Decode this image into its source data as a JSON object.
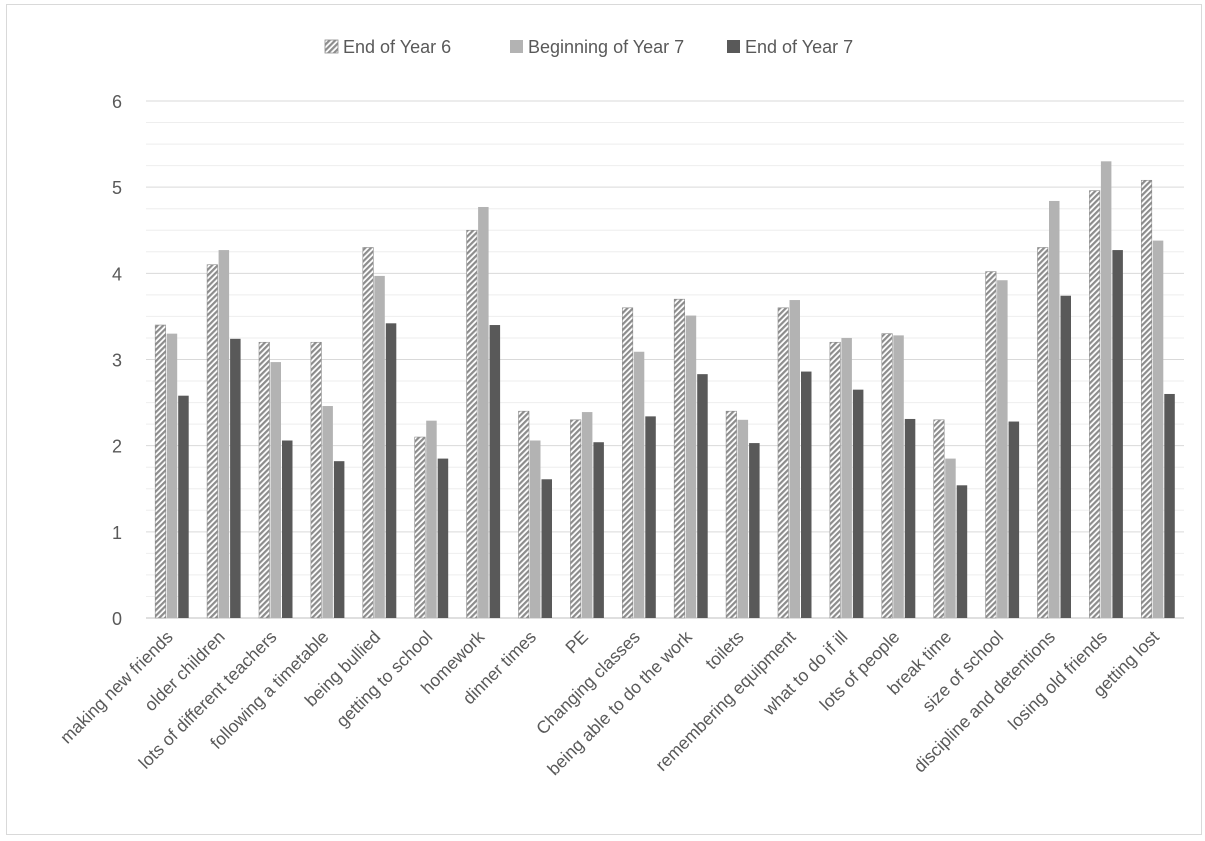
{
  "chart_data": {
    "type": "bar",
    "title": "",
    "xlabel": "",
    "ylabel": "",
    "ylim": [
      0,
      6
    ],
    "yticks": [
      0,
      1,
      2,
      3,
      4,
      5,
      6
    ],
    "grid": true,
    "legend_position": "top",
    "categories": [
      "making new friends",
      "older children",
      "lots of different teachers",
      "following a timetable",
      "being bullied",
      "getting to school",
      "homework",
      "dinner times",
      "PE",
      "Changing classes",
      "being able to do the work",
      "toilets",
      "remembering equipment",
      "what to do if ill",
      "lots of people",
      "break time",
      "size of school",
      "discipline and detentions",
      "losing old friends",
      "getting lost"
    ],
    "series": [
      {
        "name": "End of Year 6",
        "color": "#a6a6a6",
        "pattern": "hatched",
        "values": [
          3.4,
          4.1,
          3.2,
          3.2,
          4.3,
          2.1,
          4.5,
          2.4,
          2.3,
          3.6,
          3.7,
          2.4,
          3.6,
          3.2,
          3.3,
          2.3,
          4.02,
          4.3,
          4.96,
          5.08
        ]
      },
      {
        "name": "Beginning of Year 7",
        "color": "#b3b3b3",
        "pattern": "solid",
        "values": [
          3.3,
          4.27,
          2.97,
          2.46,
          3.97,
          2.29,
          4.77,
          2.06,
          2.39,
          3.09,
          3.51,
          2.3,
          3.69,
          3.25,
          3.28,
          1.85,
          3.92,
          4.84,
          5.3,
          4.38
        ]
      },
      {
        "name": "End of Year 7",
        "color": "#595959",
        "pattern": "solid",
        "values": [
          2.58,
          3.24,
          2.06,
          1.82,
          3.42,
          1.85,
          3.4,
          1.61,
          2.04,
          2.34,
          2.83,
          2.03,
          2.86,
          2.65,
          2.31,
          1.54,
          2.28,
          3.74,
          4.27,
          2.6
        ]
      }
    ]
  }
}
